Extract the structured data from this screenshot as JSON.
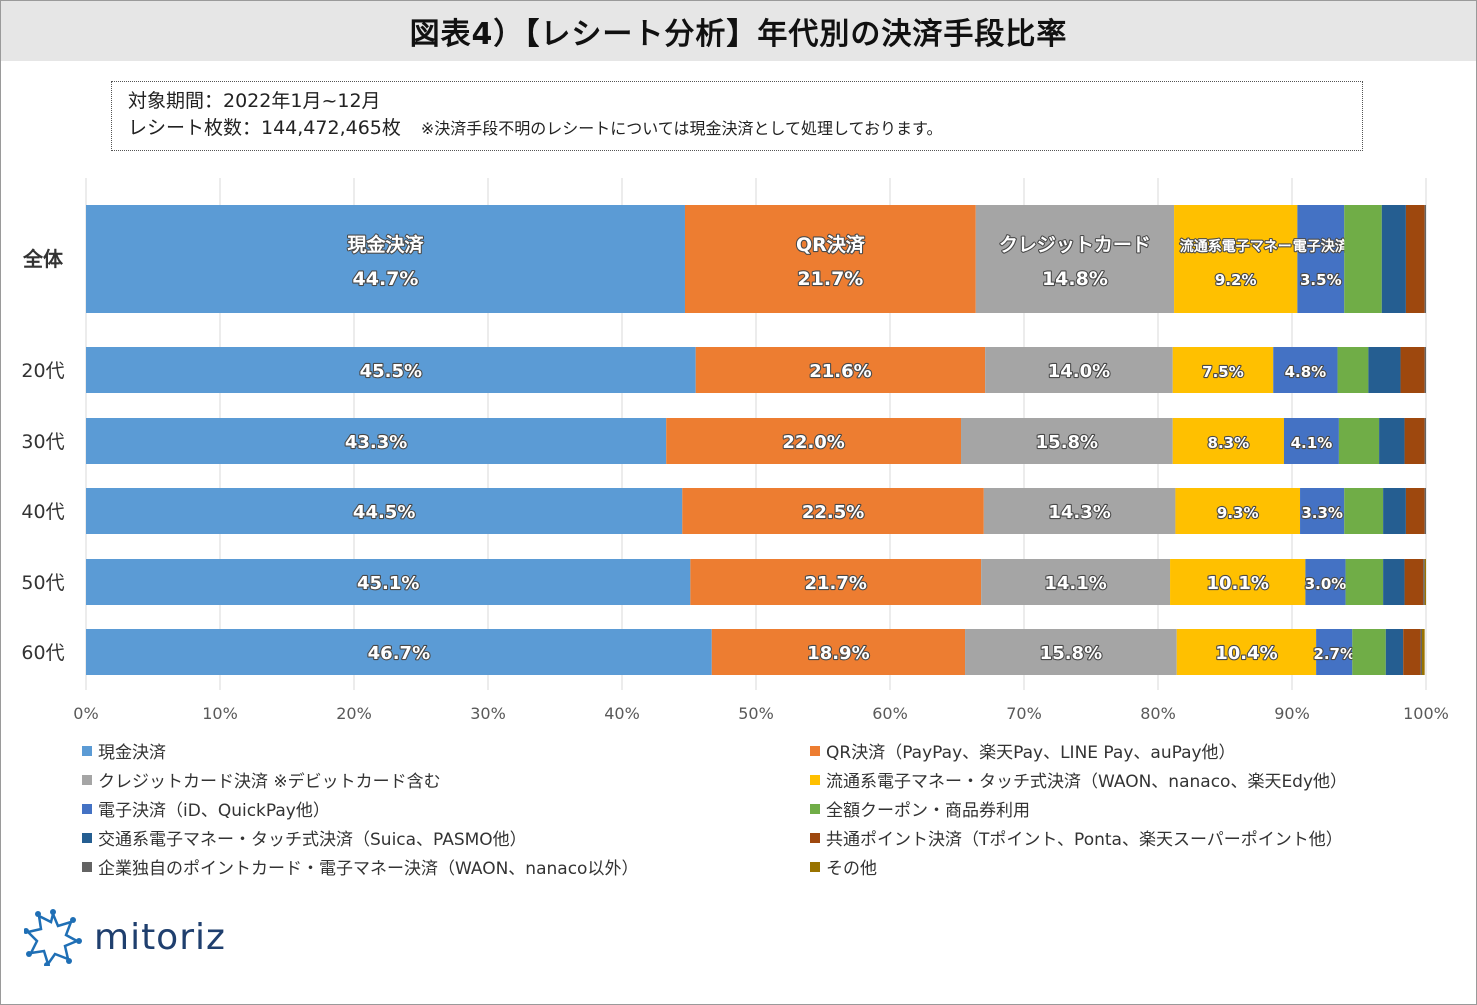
{
  "title": "図表4）【レシート分析】年代別の決済手段比率",
  "notes": {
    "period": "対象期間：2022年1月~12月",
    "receipts": "レシート枚数：144,472,465枚",
    "remark": "※決済手段不明のレシートについては現金決済として処理しております。"
  },
  "chart_data": {
    "type": "bar",
    "orientation": "horizontal",
    "stacked": "percent",
    "categories": [
      "全体",
      "20代",
      "30代",
      "40代",
      "50代",
      "60代"
    ],
    "xlim": [
      0,
      100
    ],
    "xticks": [
      "0%",
      "10%",
      "20%",
      "30%",
      "40%",
      "50%",
      "60%",
      "70%",
      "80%",
      "90%",
      "100%"
    ],
    "series": [
      {
        "name": "現金決済",
        "color": "#5b9bd5",
        "values": [
          44.7,
          45.5,
          43.3,
          44.5,
          45.1,
          46.7
        ]
      },
      {
        "name": "QR決済（PayPay、楽天Pay、LINE Pay、auPay他）",
        "color": "#ed7d31",
        "values": [
          21.7,
          21.6,
          22.0,
          22.5,
          21.7,
          18.9
        ]
      },
      {
        "name": "クレジットカード決済 ※デビットカード含む",
        "color": "#a5a5a5",
        "values": [
          14.8,
          14.0,
          15.8,
          14.3,
          14.1,
          15.8
        ]
      },
      {
        "name": "流通系電子マネー・タッチ式決済（WAON、nanaco、楽天Edy他）",
        "color": "#ffc000",
        "values": [
          9.2,
          7.5,
          8.3,
          9.3,
          10.1,
          10.4
        ]
      },
      {
        "name": "電子決済（iD、QuickPay他）",
        "color": "#4472c4",
        "values": [
          3.5,
          4.8,
          4.1,
          3.3,
          3.0,
          2.7
        ]
      },
      {
        "name": "全額クーポン・商品券利用",
        "color": "#70ad47",
        "values": [
          2.8,
          2.3,
          3.0,
          2.9,
          2.8,
          2.5
        ]
      },
      {
        "name": "交通系電子マネー・タッチ式決済（Suica、PASMO他）",
        "color": "#255e91",
        "values": [
          1.8,
          2.4,
          1.9,
          1.7,
          1.6,
          1.3
        ]
      },
      {
        "name": "共通ポイント決済（Tポイント、Ponta、楽天スーパーポイント他）",
        "color": "#9e480e",
        "values": [
          1.4,
          1.8,
          1.5,
          1.4,
          1.4,
          1.3
        ]
      },
      {
        "name": "企業独自のポイントカード・電子マネー決済（WAON、nanaco以外）",
        "color": "#636363",
        "values": [
          0.1,
          0.1,
          0.1,
          0.1,
          0.1,
          0.1
        ]
      },
      {
        "name": "その他",
        "color": "#997300",
        "values": [
          0.0,
          0.0,
          0.0,
          0.0,
          0.1,
          0.2
        ]
      }
    ],
    "data_labels": [
      [
        [
          "現金決済",
          "44.7%"
        ],
        [
          "QR決済",
          "21.7%"
        ],
        [
          "クレジットカード",
          "14.8%"
        ],
        [
          "流通系電子マネー",
          "9.2%"
        ],
        [
          "電子決済",
          "3.5%"
        ]
      ],
      [
        [
          "",
          "45.5%"
        ],
        [
          "",
          "21.6%"
        ],
        [
          "",
          "14.0%"
        ],
        [
          "",
          "7.5%"
        ],
        [
          "",
          "4.8%"
        ]
      ],
      [
        [
          "",
          "43.3%"
        ],
        [
          "",
          "22.0%"
        ],
        [
          "",
          "15.8%"
        ],
        [
          "",
          "8.3%"
        ],
        [
          "",
          "4.1%"
        ]
      ],
      [
        [
          "",
          "44.5%"
        ],
        [
          "",
          "22.5%"
        ],
        [
          "",
          "14.3%"
        ],
        [
          "",
          "9.3%"
        ],
        [
          "",
          "3.3%"
        ]
      ],
      [
        [
          "",
          "45.1%"
        ],
        [
          "",
          "21.7%"
        ],
        [
          "",
          "14.1%"
        ],
        [
          "",
          "10.1%"
        ],
        [
          "",
          "3.0%"
        ]
      ],
      [
        [
          "",
          "46.7%"
        ],
        [
          "",
          "18.9%"
        ],
        [
          "",
          "15.8%"
        ],
        [
          "",
          "10.4%"
        ],
        [
          "",
          "2.7%"
        ]
      ]
    ],
    "legend": [
      "現金決済",
      "QR決済（PayPay、楽天Pay、LINE Pay、auPay他）",
      "クレジットカード決済 ※デビットカード含む",
      "流通系電子マネー・タッチ式決済（WAON、nanaco、楽天Edy他）",
      "電子決済（iD、QuickPay他）",
      "全額クーポン・商品券利用",
      "交通系電子マネー・タッチ式決済（Suica、PASMO他）",
      "共通ポイント決済（Tポイント、Ponta、楽天スーパーポイント他）",
      "企業独自のポイントカード・電子マネー決済（WAON、nanaco以外）",
      "その他"
    ],
    "legend_placement": "bottom"
  },
  "logo": {
    "text": "mitoriz"
  }
}
